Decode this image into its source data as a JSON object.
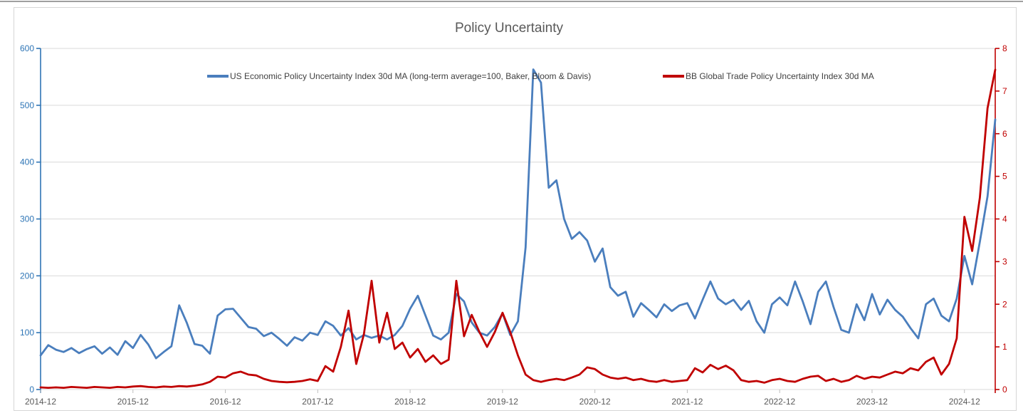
{
  "window": {
    "top_edge_color": "#3f3f3f",
    "chart_border_color": "#d6d6d6",
    "background": "#ffffff"
  },
  "chart": {
    "title": "Policy Uncertainty",
    "title_color": "#595959",
    "legend_text_color": "#404040"
  },
  "chart_data": {
    "type": "line",
    "title": "Policy Uncertainty",
    "grid": "horizontal",
    "grid_color": "#d9d9d9",
    "legend_position": "top-inside",
    "x": [
      "2014-12",
      "2015-01",
      "2015-02",
      "2015-03",
      "2015-04",
      "2015-05",
      "2015-06",
      "2015-07",
      "2015-08",
      "2015-09",
      "2015-10",
      "2015-11",
      "2015-12",
      "2016-01",
      "2016-02",
      "2016-03",
      "2016-04",
      "2016-05",
      "2016-06",
      "2016-07",
      "2016-08",
      "2016-09",
      "2016-10",
      "2016-11",
      "2016-12",
      "2017-01",
      "2017-02",
      "2017-03",
      "2017-04",
      "2017-05",
      "2017-06",
      "2017-07",
      "2017-08",
      "2017-09",
      "2017-10",
      "2017-11",
      "2017-12",
      "2018-01",
      "2018-02",
      "2018-03",
      "2018-04",
      "2018-05",
      "2018-06",
      "2018-07",
      "2018-08",
      "2018-09",
      "2018-10",
      "2018-11",
      "2018-12",
      "2019-01",
      "2019-02",
      "2019-03",
      "2019-04",
      "2019-05",
      "2019-06",
      "2019-07",
      "2019-08",
      "2019-09",
      "2019-10",
      "2019-11",
      "2019-12",
      "2020-01",
      "2020-02",
      "2020-03",
      "2020-04",
      "2020-05",
      "2020-06",
      "2020-07",
      "2020-08",
      "2020-09",
      "2020-10",
      "2020-11",
      "2020-12",
      "2021-01",
      "2021-02",
      "2021-03",
      "2021-04",
      "2021-05",
      "2021-06",
      "2021-07",
      "2021-08",
      "2021-09",
      "2021-10",
      "2021-11",
      "2021-12",
      "2022-01",
      "2022-02",
      "2022-03",
      "2022-04",
      "2022-05",
      "2022-06",
      "2022-07",
      "2022-08",
      "2022-09",
      "2022-10",
      "2022-11",
      "2022-12",
      "2023-01",
      "2023-02",
      "2023-03",
      "2023-04",
      "2023-05",
      "2023-06",
      "2023-07",
      "2023-08",
      "2023-09",
      "2023-10",
      "2023-11",
      "2023-12",
      "2024-01",
      "2024-02",
      "2024-03",
      "2024-04",
      "2024-05",
      "2024-06",
      "2024-07",
      "2024-08",
      "2024-09",
      "2024-10",
      "2024-11",
      "2024-12",
      "2025-01",
      "2025-02",
      "2025-03",
      "2025-04"
    ],
    "series": [
      {
        "name": "US Economic Policy Uncertainty Index 30d MA (long-term average=100, Baker, Bloom & Davis)",
        "axis": "left",
        "color": "#4a7ebd",
        "values": [
          60,
          78,
          70,
          66,
          73,
          64,
          71,
          76,
          63,
          74,
          61,
          85,
          73,
          96,
          79,
          55,
          66,
          76,
          148,
          117,
          80,
          77,
          63,
          130,
          141,
          142,
          126,
          110,
          107,
          94,
          100,
          89,
          77,
          92,
          86,
          100,
          96,
          120,
          112,
          95,
          108,
          88,
          96,
          91,
          95,
          88,
          96,
          112,
          142,
          165,
          130,
          95,
          88,
          100,
          168,
          155,
          118,
          100,
          95,
          110,
          134,
          96,
          120,
          250,
          563,
          540,
          355,
          368,
          300,
          265,
          277,
          262,
          225,
          248,
          180,
          165,
          172,
          128,
          152,
          140,
          127,
          150,
          138,
          148,
          152,
          125,
          158,
          190,
          160,
          150,
          158,
          140,
          156,
          120,
          100,
          150,
          162,
          148,
          190,
          155,
          115,
          172,
          190,
          145,
          105,
          100,
          150,
          122,
          168,
          132,
          158,
          140,
          128,
          108,
          90,
          150,
          160,
          130,
          120,
          160,
          235,
          185,
          260,
          340,
          475
        ]
      },
      {
        "name": "BB Global Trade Policy Uncertainty Index 30d MA",
        "axis": "right",
        "color": "#c00000",
        "values": [
          0.05,
          0.04,
          0.05,
          0.04,
          0.06,
          0.05,
          0.04,
          0.06,
          0.05,
          0.04,
          0.06,
          0.05,
          0.07,
          0.08,
          0.06,
          0.05,
          0.07,
          0.06,
          0.08,
          0.07,
          0.09,
          0.12,
          0.18,
          0.3,
          0.28,
          0.38,
          0.42,
          0.35,
          0.33,
          0.25,
          0.2,
          0.18,
          0.17,
          0.18,
          0.2,
          0.24,
          0.2,
          0.55,
          0.42,
          1.0,
          1.85,
          0.6,
          1.3,
          2.55,
          1.1,
          1.8,
          0.95,
          1.1,
          0.75,
          0.95,
          0.65,
          0.8,
          0.6,
          0.7,
          2.55,
          1.25,
          1.75,
          1.35,
          1.0,
          1.35,
          1.8,
          1.35,
          0.8,
          0.35,
          0.22,
          0.18,
          0.22,
          0.25,
          0.22,
          0.28,
          0.35,
          0.52,
          0.48,
          0.35,
          0.28,
          0.25,
          0.28,
          0.22,
          0.25,
          0.2,
          0.18,
          0.22,
          0.18,
          0.2,
          0.22,
          0.5,
          0.4,
          0.58,
          0.48,
          0.56,
          0.45,
          0.22,
          0.18,
          0.2,
          0.16,
          0.22,
          0.25,
          0.2,
          0.18,
          0.25,
          0.3,
          0.32,
          0.2,
          0.25,
          0.18,
          0.22,
          0.32,
          0.25,
          0.3,
          0.28,
          0.35,
          0.42,
          0.38,
          0.5,
          0.45,
          0.65,
          0.75,
          0.35,
          0.6,
          1.2,
          4.05,
          3.25,
          4.5,
          6.6,
          7.5
        ]
      }
    ],
    "left_axis": {
      "min": 0,
      "max": 600,
      "tick_interval": 100,
      "color": "#2e75b6",
      "labels": [
        "0",
        "100",
        "200",
        "300",
        "400",
        "500",
        "600"
      ]
    },
    "right_axis": {
      "min": 0,
      "max": 8,
      "tick_interval": 1,
      "color": "#c00000",
      "labels": [
        "0",
        "1",
        "2",
        "3",
        "4",
        "5",
        "6",
        "7",
        "8"
      ]
    },
    "x_axis": {
      "color": "#595959",
      "tick_color": "#bfbfbf",
      "tick_every_months": 12,
      "tick_labels": [
        "2014-12",
        "2015-12",
        "2016-12",
        "2017-12",
        "2018-12",
        "2019-12",
        "2020-12",
        "2021-12",
        "2022-12",
        "2023-12",
        "2024-12"
      ]
    }
  }
}
